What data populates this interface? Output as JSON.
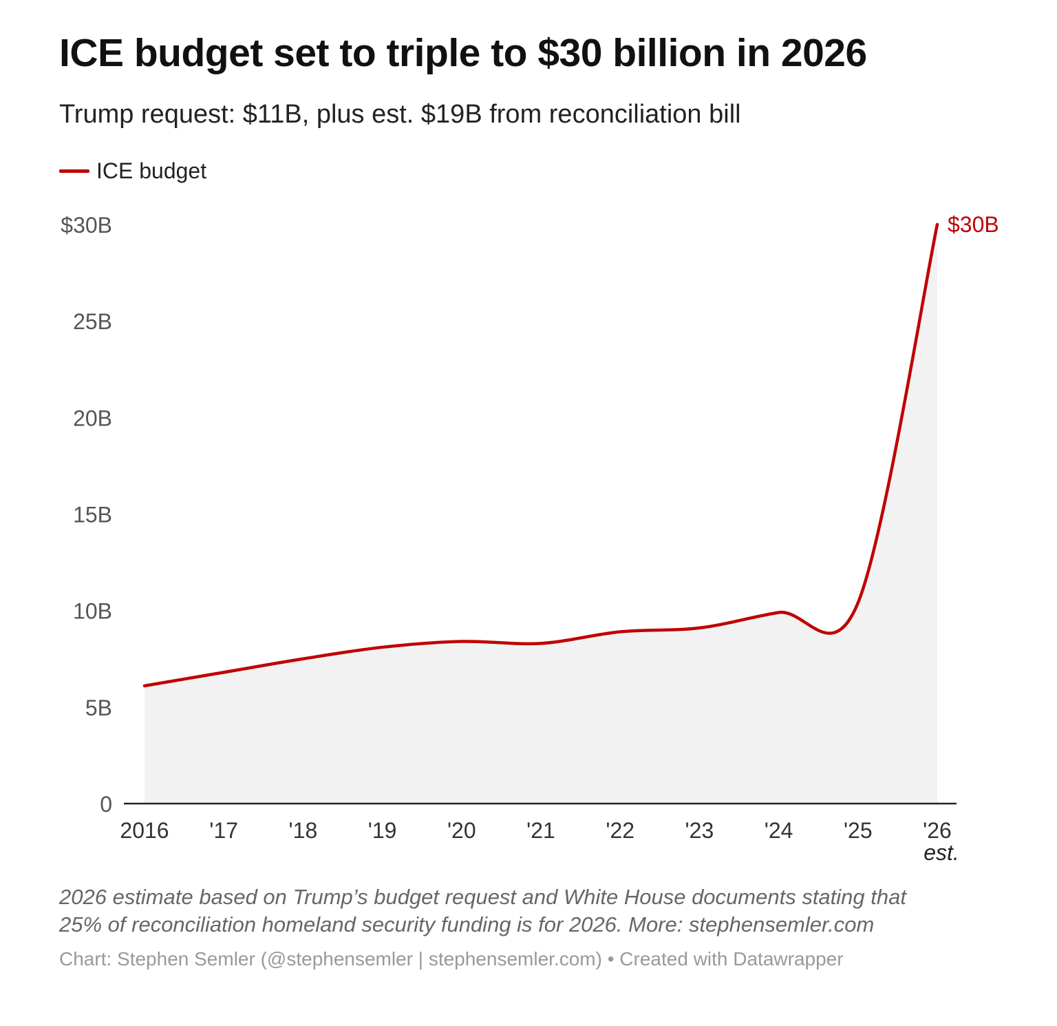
{
  "chart_data": {
    "type": "area",
    "title": "ICE budget set to triple to $30 billion in 2026",
    "subtitle": "Trump request: $11B, plus est. $19B from reconciliation bill",
    "legend": [
      {
        "name": "ICE budget",
        "color": "#c00000"
      }
    ],
    "legend_placement": "top-left",
    "x": [
      2016,
      2017,
      2018,
      2019,
      2020,
      2021,
      2022,
      2023,
      2024,
      2025,
      2026
    ],
    "x_tick_labels": [
      "2016",
      "'17",
      "'18",
      "'19",
      "'20",
      "'21",
      "'22",
      "'23",
      "'24",
      "'25",
      "'26"
    ],
    "x_tick_sublabel": {
      "2026": "est."
    },
    "series": [
      {
        "name": "ICE budget",
        "values": [
          6.1,
          6.8,
          7.5,
          8.1,
          8.4,
          8.3,
          8.9,
          9.1,
          9.9,
          10.4,
          30
        ]
      }
    ],
    "y_ticks": [
      0,
      5,
      10,
      15,
      20,
      25,
      30
    ],
    "y_tick_labels": [
      "0",
      "5B",
      "10B",
      "15B",
      "20B",
      "25B",
      "$30B"
    ],
    "ylim": [
      0,
      30
    ],
    "end_label": "$30B",
    "line_color": "#c00000",
    "area_color": "#f2f2f2",
    "grid": false,
    "notes": [
      "2026 estimate based on Trump’s budget request and White House documents stating that",
      "25% of reconciliation homeland security funding is for 2026. More: stephensemler.com"
    ],
    "credit": "Chart: Stephen Semler (@stephensemler | stephensemler.com) • Created with Datawrapper"
  }
}
